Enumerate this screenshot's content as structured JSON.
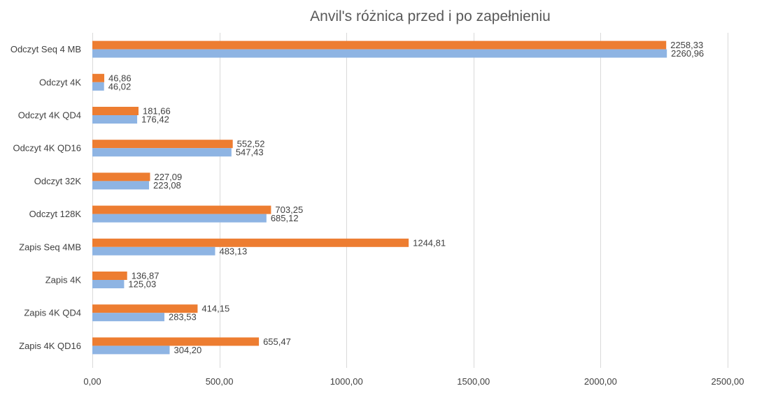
{
  "chart_data": {
    "type": "bar",
    "orientation": "horizontal",
    "title": "Anvil's różnica przed i po zapełnieniu",
    "xlabel": "",
    "ylabel": "",
    "xlim": [
      0,
      2500
    ],
    "ticks": [
      0,
      500,
      1000,
      1500,
      2000,
      2500
    ],
    "tick_labels": [
      "0,00",
      "500,00",
      "1000,00",
      "1500,00",
      "2000,00",
      "2500,00"
    ],
    "grid": true,
    "legend": "none",
    "categories": [
      "Odczyt Seq 4 MB",
      "Odczyt 4K",
      "Odczyt 4K QD4",
      "Odczyt 4K QD16",
      "Odczyt 32K",
      "Odczyt 128K",
      "Zapis Seq 4MB",
      "Zapis 4K",
      "Zapis 4K QD4",
      "Zapis 4K QD16"
    ],
    "series": [
      {
        "color": "#ed7d31",
        "values": [
          2258.33,
          46.86,
          181.66,
          552.52,
          227.09,
          703.25,
          1244.81,
          136.87,
          414.15,
          655.47
        ],
        "labels": [
          "2258,33",
          "46,86",
          "181,66",
          "552,52",
          "227,09",
          "703,25",
          "1244,81",
          "136,87",
          "414,15",
          "655,47"
        ]
      },
      {
        "color": "#8eb4e3",
        "values": [
          2260.96,
          46.02,
          176.42,
          547.43,
          223.08,
          685.12,
          483.13,
          125.03,
          283.53,
          304.2
        ],
        "labels": [
          "2260,96",
          "46,02",
          "176,42",
          "547,43",
          "223,08",
          "685,12",
          "483,13",
          "125,03",
          "283,53",
          "304,20"
        ]
      }
    ]
  }
}
